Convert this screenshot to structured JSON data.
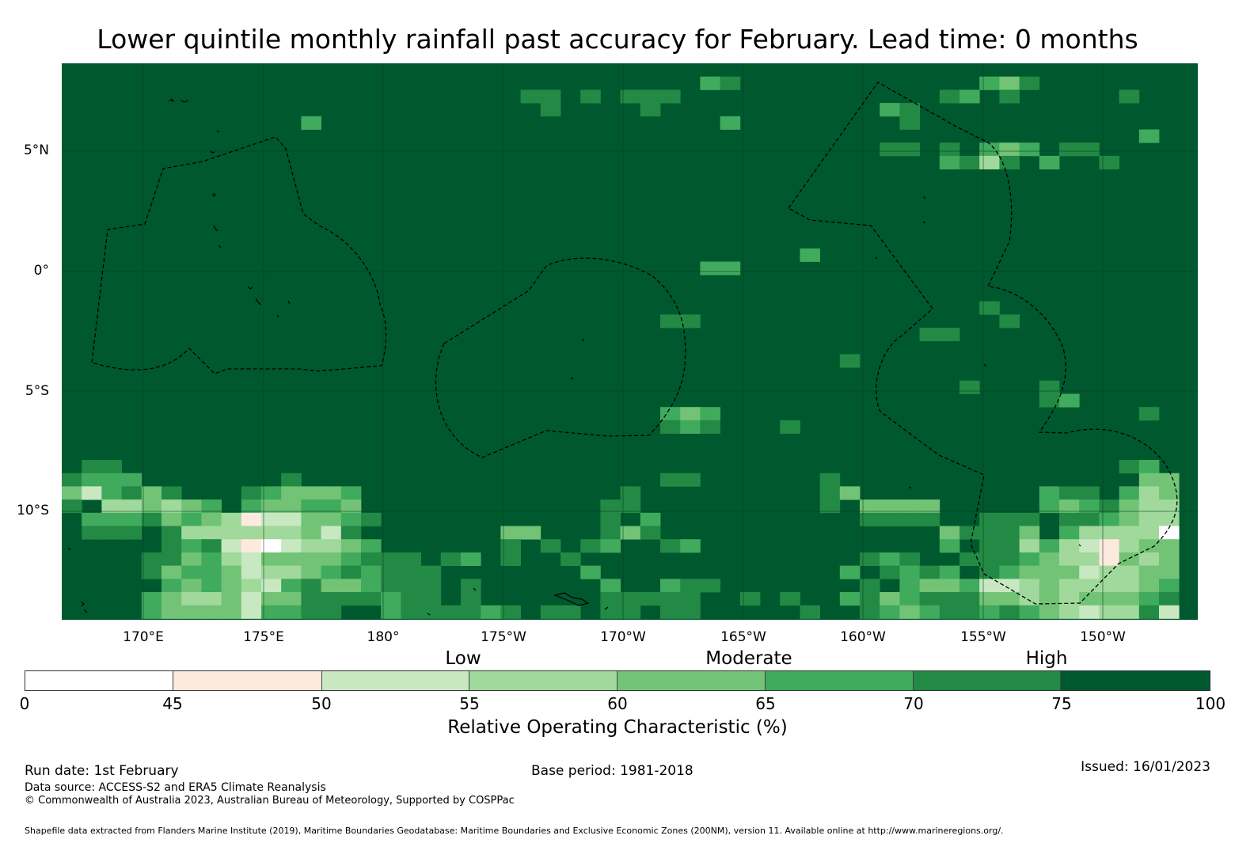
{
  "title": "Lower quintile monthly rainfall past accuracy for February. Lead time: 0 months",
  "map": {
    "lat_labels": [
      "5°N",
      "0°",
      "5°S",
      "10°S"
    ],
    "lon_labels": [
      "170°E",
      "175°E",
      "180°",
      "175°W",
      "170°W",
      "165°W",
      "160°W",
      "155°W",
      "150°W"
    ],
    "background_color": "#00582f"
  },
  "legend": {
    "categories": [
      "Low",
      "Moderate",
      "High"
    ],
    "ticks": [
      "0",
      "45",
      "50",
      "55",
      "60",
      "65",
      "70",
      "75",
      "100"
    ],
    "colors": [
      "#ffffff",
      "#fee9df",
      "#c7e8c0",
      "#a0d99b",
      "#72c376",
      "#40aa5d",
      "#228a44",
      "#00582f"
    ],
    "title": "Relative Operating Characteristic (%)"
  },
  "footer": {
    "run_date": "Run date: 1st February",
    "base_period": "Base period: 1981-2018",
    "issued": "Issued: 16/01/2023",
    "data_source": "Data source: ACCESS-S2 and ERA5 Climate Reanalysis",
    "copyright": "© Commonwealth of Australia 2023, Australian Bureau of Meteorology, Supported by COSPPac",
    "shapefile": "Shapefile data extracted from Flanders Marine Institute (2019), Maritime Boundaries Geodatabase: Maritime Boundaries and Exclusive Economic Zones (200NM), version 11. Available online at http://www.marineregions.org/."
  }
}
